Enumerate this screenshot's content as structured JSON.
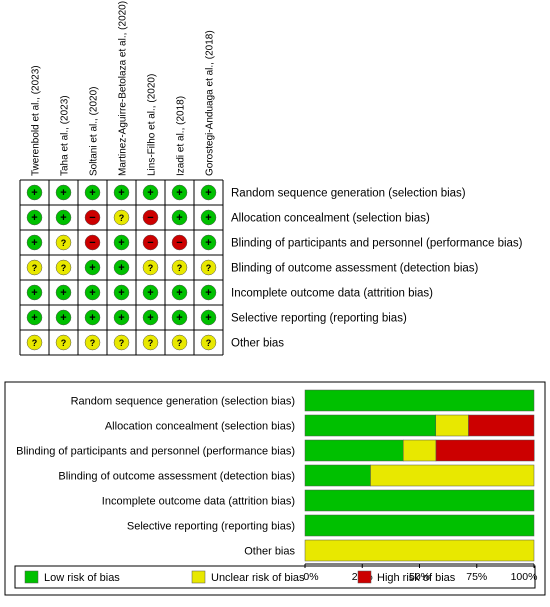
{
  "chart_data": [
    {
      "type": "table",
      "studies": [
        "Twerenbold et al., (2023)",
        "Taha et al., (2023)",
        "Soltani et al., (2020)",
        "Martinez-Aguirre-Betolaza et al., (2020)",
        "Lins-Filho et al., (2020)",
        "Izadi et al., (2018)",
        "Gorostegi-Anduaga et al., (2018)"
      ],
      "domains": [
        "Random sequence generation (selection bias)",
        "Allocation concealment (selection bias)",
        "Blinding of participants and personnel (performance bias)",
        "Blinding of outcome assessment (detection bias)",
        "Incomplete outcome data (attrition bias)",
        "Selective reporting (reporting bias)",
        "Other bias"
      ],
      "judgements": [
        [
          "low",
          "low",
          "low",
          "low",
          "low",
          "low",
          "low"
        ],
        [
          "low",
          "low",
          "high",
          "unclear",
          "high",
          "low",
          "low"
        ],
        [
          "low",
          "unclear",
          "high",
          "low",
          "high",
          "high",
          "low"
        ],
        [
          "unclear",
          "unclear",
          "low",
          "low",
          "unclear",
          "unclear",
          "unclear"
        ],
        [
          "low",
          "low",
          "low",
          "low",
          "low",
          "low",
          "low"
        ],
        [
          "low",
          "low",
          "low",
          "low",
          "low",
          "low",
          "low"
        ],
        [
          "unclear",
          "unclear",
          "unclear",
          "unclear",
          "unclear",
          "unclear",
          "unclear"
        ]
      ],
      "symbols": {
        "low": "+",
        "unclear": "?",
        "high": "−"
      }
    },
    {
      "type": "bar",
      "stacked": true,
      "orientation": "horizontal",
      "categories": [
        "Random sequence generation (selection bias)",
        "Allocation concealment (selection bias)",
        "Blinding of participants and personnel (performance bias)",
        "Blinding of outcome assessment (detection bias)",
        "Incomplete outcome data (attrition bias)",
        "Selective reporting (reporting bias)",
        "Other bias"
      ],
      "series": [
        {
          "name": "Low risk of bias",
          "values": [
            100,
            57.1,
            42.9,
            28.6,
            100,
            100,
            0
          ]
        },
        {
          "name": "Unclear risk of bias",
          "values": [
            0,
            14.3,
            14.3,
            71.4,
            0,
            0,
            100
          ]
        },
        {
          "name": "High risk of bias",
          "values": [
            0,
            28.6,
            42.9,
            0,
            0,
            0,
            0
          ]
        }
      ],
      "xticks": [
        "0%",
        "25%",
        "50%",
        "75%",
        "100%"
      ],
      "xlim": [
        0,
        100
      ],
      "legend_position": "bottom"
    }
  ],
  "colors": {
    "low": "#00c000",
    "unclear": "#e8e800",
    "high": "#cc0000"
  }
}
